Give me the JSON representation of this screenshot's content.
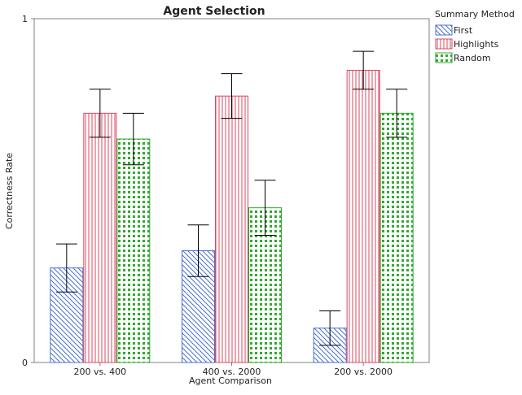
{
  "colors": {
    "first": "#4a6fd0",
    "highlights": "#d9485f",
    "random": "#2faa2f",
    "axis": "#808080",
    "errorbar": "#000000"
  },
  "chart_data": {
    "type": "bar",
    "title": "Agent Selection",
    "xlabel": "Agent Comparison",
    "ylabel": "Correctness Rate",
    "ylim": [
      0,
      1
    ],
    "yticks": [
      {
        "value": 0,
        "label": "0"
      },
      {
        "value": 1,
        "label": "1"
      }
    ],
    "categories": [
      "200 vs. 400",
      "400 vs. 2000",
      "200 vs. 2000"
    ],
    "series": [
      {
        "name": "First",
        "key": "first",
        "pattern": "diagonal",
        "values": [
          0.275,
          0.325,
          0.1
        ],
        "error_low": [
          0.205,
          0.25,
          0.05
        ],
        "error_high": [
          0.345,
          0.4,
          0.15
        ]
      },
      {
        "name": "Highlights",
        "key": "highlights",
        "pattern": "vertical",
        "values": [
          0.725,
          0.775,
          0.85
        ],
        "error_low": [
          0.655,
          0.71,
          0.795
        ],
        "error_high": [
          0.795,
          0.84,
          0.905
        ]
      },
      {
        "name": "Random",
        "key": "random",
        "pattern": "dots",
        "values": [
          0.65,
          0.45,
          0.725
        ],
        "error_low": [
          0.575,
          0.37,
          0.655
        ],
        "error_high": [
          0.725,
          0.53,
          0.795
        ]
      }
    ],
    "legend": {
      "title": "Summary Method",
      "position": "right"
    },
    "grid": false
  }
}
